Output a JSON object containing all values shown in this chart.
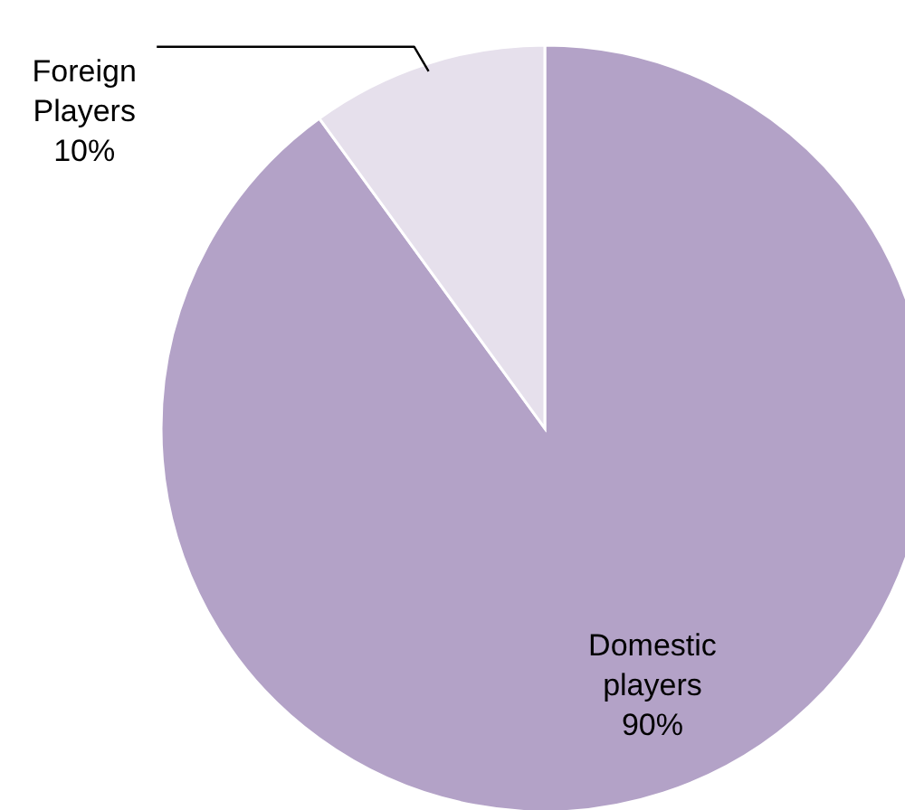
{
  "chart_data": {
    "type": "pie",
    "categories": [
      "Domestic players",
      "Foreign Players"
    ],
    "values": [
      90,
      10
    ],
    "colors": [
      "#b3a2c7",
      "#e6e0ec"
    ],
    "value_labels": [
      "90%",
      "10%"
    ]
  }
}
